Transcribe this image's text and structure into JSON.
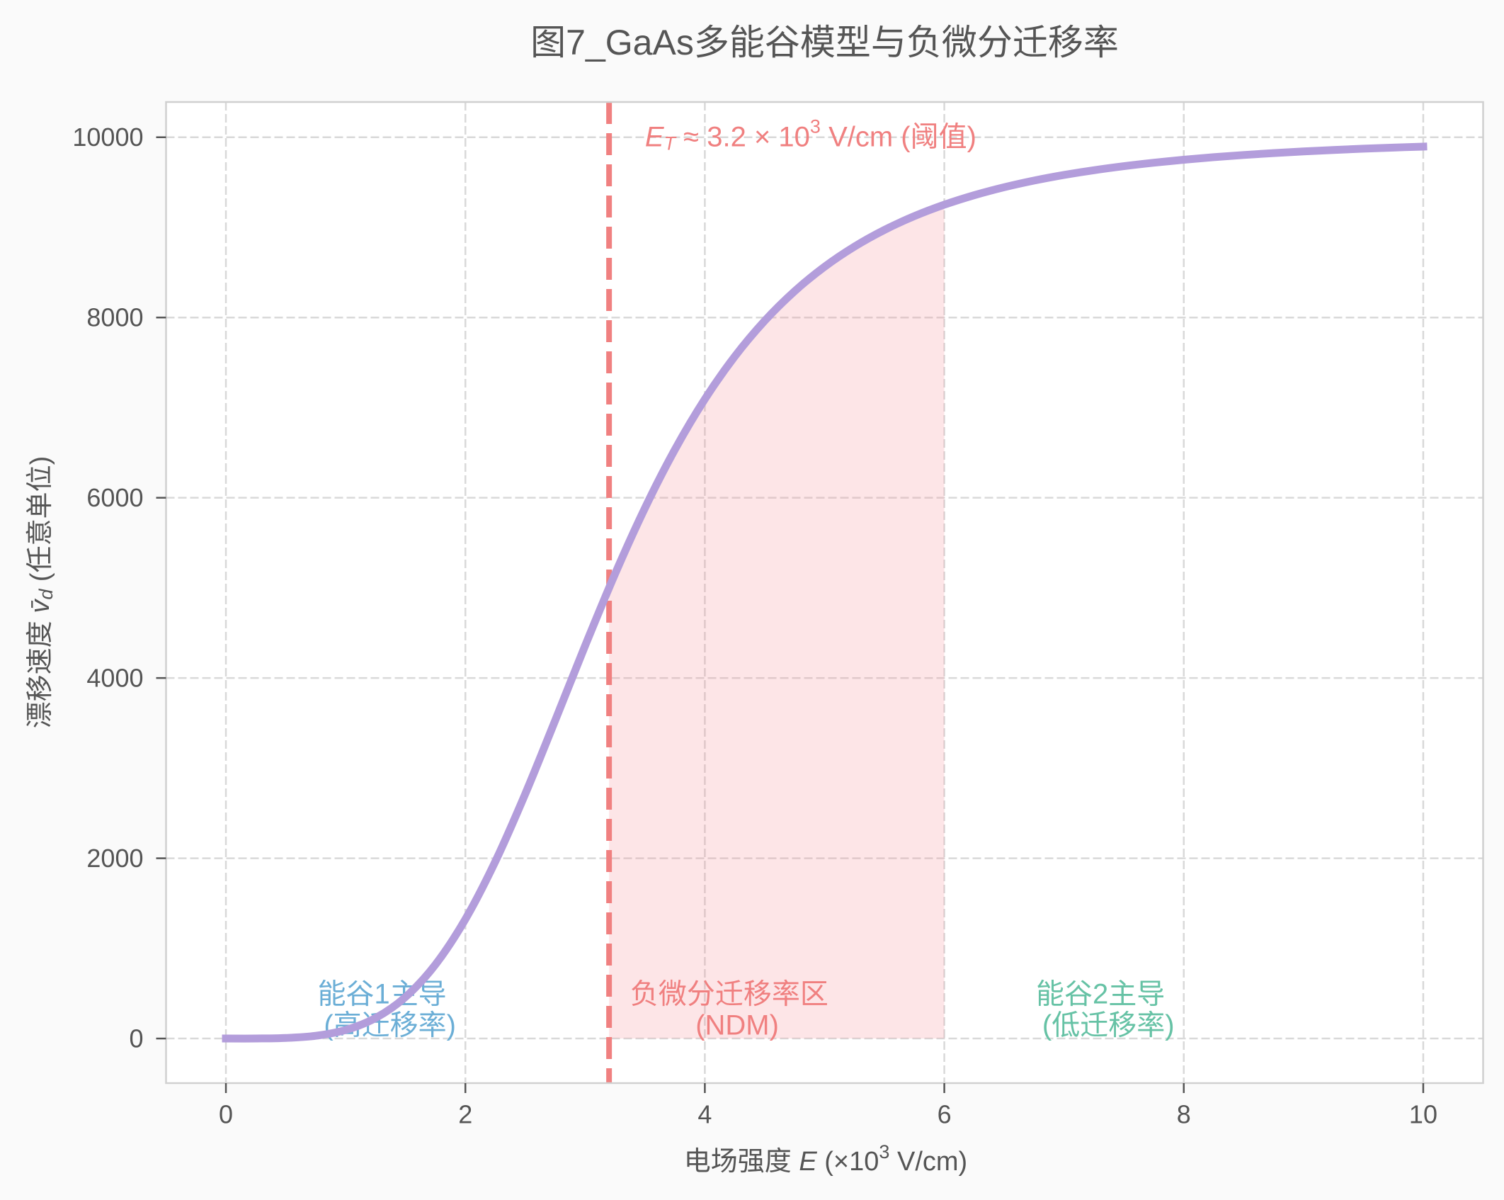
{
  "chart_data": {
    "type": "line",
    "title": "图7_GaAs多能谷模型与负微分迁移率",
    "xlabel": "电场强度 E (×10³ V/cm)",
    "ylabel": "漂移速度 v̄_d (任意单位)",
    "xlabel_parts": {
      "prefix": "电场强度 ",
      "var": "E",
      "mid": " (×10",
      "sup": "3",
      "suffix": " V/cm)"
    },
    "ylabel_parts": {
      "prefix": "漂移速度 ",
      "var": "v̄",
      "sub": "d",
      "suffix": " (任意单位)"
    },
    "xlim": [
      -0.5,
      10.5
    ],
    "ylim": [
      -494.8,
      10391
    ],
    "x_ticks": [
      0,
      2,
      4,
      6,
      8,
      10
    ],
    "x_tick_labels": [
      "0",
      "2",
      "4",
      "6",
      "8",
      "10"
    ],
    "y_ticks": [
      0,
      2000,
      4000,
      6000,
      8000,
      10000
    ],
    "y_tick_labels": [
      "0",
      "2000",
      "4000",
      "6000",
      "8000",
      "10000"
    ],
    "grid": true,
    "legend": null,
    "series": [
      {
        "name": "漂移速度 v̄_d",
        "color": "#b39ddb",
        "x": [
          0,
          0.25,
          0.5,
          0.75,
          1,
          1.25,
          1.5,
          1.75,
          2,
          2.25,
          2.5,
          2.75,
          3,
          3.25,
          3.5,
          3.75,
          4,
          4.25,
          4.5,
          4.75,
          5,
          5.25,
          5.5,
          5.75,
          6,
          6.25,
          6.5,
          6.75,
          7,
          7.25,
          7.5,
          7.75,
          8,
          8.25,
          8.5,
          8.75,
          9,
          9.25,
          9.5,
          9.75,
          10
        ],
        "y": [
          0,
          0.4,
          6.0,
          30.1,
          94.5,
          227.5,
          460.6,
          821.0,
          1323.9,
          1964.1,
          2714.2,
          3529.3,
          4358.2,
          5155.0,
          5886.7,
          6534.9,
          7094.2,
          7567.8,
          7963.6,
          8292.0,
          8563.3,
          8787.1,
          8971.9,
          9124.7,
          9251.5,
          9357.0,
          9445.2,
          9519.2,
          9581.6,
          9634.3,
          9679.2,
          9717.5,
          9750.4,
          9778.7,
          9803.1,
          9824.3,
          9842.7,
          9858.8,
          9872.9,
          9885.3,
          9896.2
        ]
      }
    ],
    "vlines": [
      {
        "x": 3.2,
        "color": "#f08080",
        "style": "dashed",
        "label": "阈值电场 E_T"
      }
    ],
    "fill_between": {
      "x_start": 3.2,
      "x_end": 6.0,
      "y_base": 0,
      "color": "#fde5e8",
      "label": "负微分迁移率区 (NDM)"
    },
    "annotations": [
      {
        "text": "E_T ≈ 3.2 × 10³ V/cm (阈值)",
        "x": 3.5,
        "y": 10000,
        "ha": "left",
        "color": "#f08080",
        "parts": {
          "symbol": "E",
          "sub": "T",
          "relation": " ≈ 3.2 × 10",
          "sup": "3",
          "unit": " V/cm (阈值)"
        }
      },
      {
        "text": "能谷1主导\n(高迁移率)",
        "lines": [
          "能谷1主导",
          "(高迁移率)"
        ],
        "x": 1.6,
        "y": 320,
        "ha": "center",
        "color": "#6baed6"
      },
      {
        "text": "负微分迁移率区\n(NDM)",
        "lines": [
          "负微分迁移率区",
          "(NDM)"
        ],
        "x": 4.5,
        "y": 320,
        "ha": "center",
        "color": "#f08080"
      },
      {
        "text": "能谷2主导\n(低迁移率)",
        "lines": [
          "能谷2主导",
          "(低迁移率)"
        ],
        "x": 7.6,
        "y": 320,
        "ha": "center",
        "color": "#66c2a5"
      }
    ],
    "colors": {
      "figure_background": "#fafafa",
      "axes_background": "#ffffff",
      "frame": "#d0d0d0",
      "grid": "#d9d9d9",
      "text": "#555555",
      "curve": "#b39ddb",
      "threshold": "#f08080",
      "ndm_fill": "#fde5e8",
      "valley1": "#6baed6",
      "valley2": "#66c2a5"
    }
  }
}
